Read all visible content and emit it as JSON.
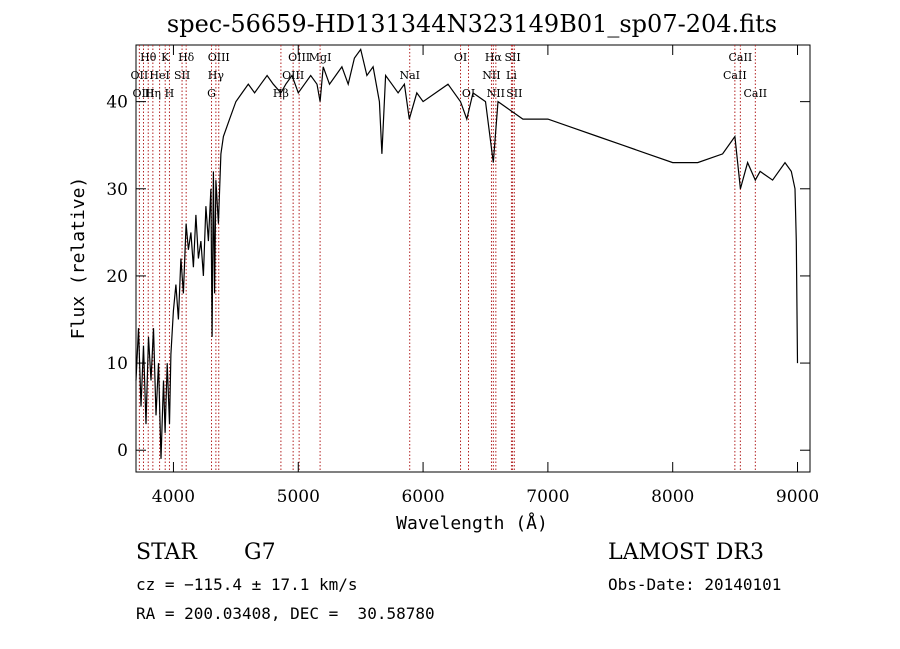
{
  "chart_data": {
    "type": "line",
    "title": "spec-56659-HD131344N323149B01_sp07-204.fits",
    "xlabel": "Wavelength (Å)",
    "ylabel": "Flux (relative)",
    "xlim": [
      3700,
      9100
    ],
    "ylim": [
      -2.5,
      46.5
    ],
    "xticks": [
      4000,
      5000,
      6000,
      7000,
      8000,
      9000
    ],
    "yticks": [
      0,
      10,
      20,
      30,
      40
    ],
    "series": [
      {
        "name": "flux",
        "x": [
          3700,
          3720,
          3740,
          3760,
          3780,
          3800,
          3820,
          3840,
          3860,
          3880,
          3900,
          3920,
          3933,
          3950,
          3968,
          3980,
          4000,
          4020,
          4040,
          4060,
          4080,
          4101,
          4120,
          4140,
          4160,
          4180,
          4200,
          4220,
          4240,
          4260,
          4280,
          4300,
          4310,
          4320,
          4330,
          4340,
          4360,
          4380,
          4400,
          4450,
          4500,
          4550,
          4600,
          4650,
          4700,
          4750,
          4800,
          4861,
          4900,
          4950,
          5000,
          5050,
          5100,
          5150,
          5175,
          5200,
          5250,
          5300,
          5350,
          5400,
          5450,
          5500,
          5550,
          5600,
          5650,
          5670,
          5700,
          5750,
          5800,
          5850,
          5890,
          5950,
          6000,
          6100,
          6200,
          6300,
          6350,
          6400,
          6500,
          6563,
          6600,
          6700,
          6800,
          7000,
          7200,
          7400,
          7600,
          7800,
          8000,
          8200,
          8400,
          8498,
          8542,
          8600,
          8662,
          8700,
          8800,
          8900,
          8950,
          8980,
          8990,
          9000
        ],
        "y": [
          8,
          14,
          5,
          12,
          3,
          13,
          8,
          14,
          4,
          10,
          -1,
          8,
          2,
          10,
          3,
          11,
          16,
          19,
          15,
          22,
          18,
          26,
          23,
          25,
          21,
          27,
          22,
          24,
          20,
          28,
          24,
          30,
          13,
          32,
          18,
          31,
          26,
          34,
          36,
          38,
          40,
          41,
          42,
          41,
          42,
          43,
          42,
          41,
          42,
          43,
          41,
          42,
          43,
          42,
          40,
          44,
          42,
          43,
          44,
          42,
          45,
          46,
          43,
          44,
          40,
          34,
          43,
          42,
          41,
          42,
          38,
          41,
          40,
          41,
          42,
          40,
          38,
          41,
          40,
          33,
          40,
          39,
          38,
          38,
          37,
          36,
          35,
          34,
          33,
          33,
          34,
          36,
          30,
          33,
          31,
          32,
          31,
          33,
          32,
          30,
          24,
          10
        ]
      }
    ],
    "lines": [
      {
        "name": "Hθ",
        "x": 3798
      },
      {
        "name": "OII",
        "x": 3727
      },
      {
        "name": "OIII",
        "x": 3760
      },
      {
        "name": "HeI",
        "x": 3889
      },
      {
        "name": "Hη",
        "x": 3835
      },
      {
        "name": "K",
        "x": 3934
      },
      {
        "name": "SII",
        "x": 4069
      },
      {
        "name": "H",
        "x": 3968
      },
      {
        "name": "Hδ",
        "x": 4102
      },
      {
        "name": "OIII",
        "x": 4363
      },
      {
        "name": "Hγ",
        "x": 4340
      },
      {
        "name": "G",
        "x": 4305
      },
      {
        "name": "OIII",
        "x": 5007
      },
      {
        "name": "OIII",
        "x": 4959
      },
      {
        "name": "Hβ",
        "x": 4861
      },
      {
        "name": "MgI",
        "x": 5175
      },
      {
        "name": "NaI",
        "x": 5893
      },
      {
        "name": "OI",
        "x": 6300
      },
      {
        "name": "OI",
        "x": 6364
      },
      {
        "name": "Hα",
        "x": 6563
      },
      {
        "name": "SII",
        "x": 6717
      },
      {
        "name": "NII",
        "x": 6548
      },
      {
        "name": "Li",
        "x": 6708
      },
      {
        "name": "NII",
        "x": 6583
      },
      {
        "name": "SII",
        "x": 6731
      },
      {
        "name": "CaII",
        "x": 8542
      },
      {
        "name": "CaII",
        "x": 8498
      },
      {
        "name": "CaII",
        "x": 8662
      }
    ],
    "line_labels": [
      {
        "text": "Hθ",
        "x": 3798
      },
      {
        "text": "K",
        "x": 3934
      },
      {
        "text": "Hδ",
        "x": 4102
      },
      {
        "text": "OIII",
        "x": 4363
      },
      {
        "text": "OIII",
        "x": 5007
      },
      {
        "text": "OI",
        "x": 6300
      },
      {
        "text": "Hα",
        "x": 6563
      },
      {
        "text": "SII",
        "x": 6717
      },
      {
        "text": "CaII",
        "x": 8542
      },
      {
        "text": "OII",
        "x": 3727
      },
      {
        "text": "HeI",
        "x": 3889
      },
      {
        "text": "SII",
        "x": 4069
      },
      {
        "text": "Hγ",
        "x": 4340
      },
      {
        "text": "OIII",
        "x": 4959
      },
      {
        "text": "NaI",
        "x": 5893
      },
      {
        "text": "NII",
        "x": 6548
      },
      {
        "text": "Li",
        "x": 6708
      },
      {
        "text": "CaII",
        "x": 8498
      },
      {
        "text": "OIII",
        "x": 3760
      },
      {
        "text": "Hη",
        "x": 3835
      },
      {
        "text": "H",
        "x": 3968
      },
      {
        "text": "G",
        "x": 4305
      },
      {
        "text": "Hβ",
        "x": 4861
      },
      {
        "text": "OI",
        "x": 6364
      },
      {
        "text": "NII",
        "x": 6583
      },
      {
        "text": "SII",
        "x": 6731
      },
      {
        "text": "CaII",
        "x": 8662
      },
      {
        "text": "MgI",
        "x": 5175
      }
    ],
    "colors": {
      "spectrum": "#000000",
      "lines": "#b22222",
      "axes": "#000000"
    }
  },
  "info": {
    "object_class": "STAR",
    "subclass": "G7",
    "cz": "cz = −115.4 ± 17.1 km/s",
    "radec": "RA = 200.03408, DEC =  30.58780",
    "survey": "LAMOST DR3",
    "obs_date": "Obs-Date: 20140101"
  }
}
